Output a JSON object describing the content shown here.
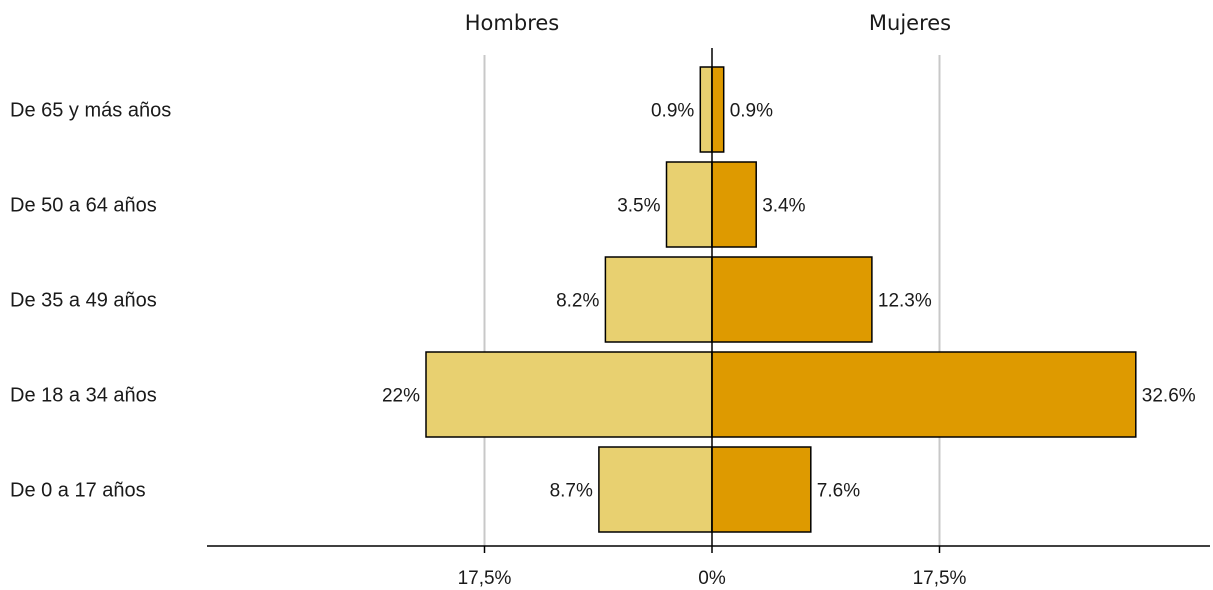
{
  "chart_data": {
    "type": "bar",
    "orientation": "horizontal-diverging",
    "categories": [
      "De 65 y más años",
      "De 50 a 64 años",
      "De 35 a 49 años",
      "De 18 a 34 años",
      "De 0 a 17 años"
    ],
    "series": [
      {
        "name": "Hombres",
        "values": [
          0.9,
          3.5,
          8.2,
          22.0,
          8.7
        ],
        "labels": [
          "0.9%",
          "3.5%",
          "8.2%",
          "22%",
          "8.7%"
        ],
        "color": "#E8D070"
      },
      {
        "name": "Mujeres",
        "values": [
          0.9,
          3.4,
          12.3,
          32.6,
          7.6
        ],
        "labels": [
          "0.9%",
          "3.4%",
          "12.3%",
          "32.6%",
          "7.6%"
        ],
        "color": "#DE9A00"
      }
    ],
    "xlim": [
      -33.5,
      33.5
    ],
    "gridlines": [
      -17.5,
      17.5
    ],
    "ticks": [
      {
        "value": -17.5,
        "label": "17,5%"
      },
      {
        "value": 0,
        "label": "0%"
      },
      {
        "value": 17.5,
        "label": "17,5%"
      }
    ],
    "grid": true,
    "legend": "none"
  }
}
